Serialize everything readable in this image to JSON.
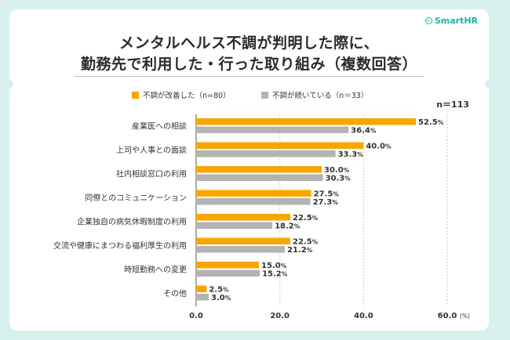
{
  "brand": {
    "name": "SmartHR",
    "icon": "smarthr-logo-icon"
  },
  "title_line1": "メンタルヘルス不調が判明した際に、",
  "title_line2": "勤務先で利用した・行った取り組み（複数回答）",
  "colors": {
    "background": "#d8f1ee",
    "orange": "#f7a600",
    "gray": "#b3b3b3",
    "accent": "#20b3a4"
  },
  "chart_data": {
    "type": "bar",
    "orientation": "horizontal",
    "sample_size_label": "n＝113",
    "unit_label": "(%)",
    "xlim": [
      0,
      60
    ],
    "xticks": [
      "0.0",
      "20.0",
      "40.0",
      "60.0"
    ],
    "grid": true,
    "legend_position": "top",
    "categories": [
      "産業医への相談",
      "上司や人事との面談",
      "社内相談窓口の利用",
      "同僚とのコミュニケーション",
      "企業独自の病気休暇制度の利用",
      "交流や健康にまつわる福利厚生の利用",
      "時短勤務への変更",
      "その他"
    ],
    "series": [
      {
        "name": "不調が改善した（n=80）",
        "color": "#f7a600",
        "values": [
          52.5,
          40.0,
          30.0,
          27.5,
          22.5,
          22.5,
          15.0,
          2.5
        ],
        "labels": [
          "52.5",
          "40.0",
          "30.0",
          "27.5",
          "22.5",
          "22.5",
          "15.0",
          "2.5"
        ]
      },
      {
        "name": "不調が続いている（n＝33）",
        "color": "#b3b3b3",
        "values": [
          36.4,
          33.3,
          30.3,
          27.3,
          18.2,
          21.2,
          15.2,
          3.0
        ],
        "labels": [
          "36.4",
          "33.3",
          "30.3",
          "27.3",
          "18.2",
          "21.2",
          "15.2",
          "3.0"
        ]
      }
    ],
    "value_suffix": "%"
  }
}
